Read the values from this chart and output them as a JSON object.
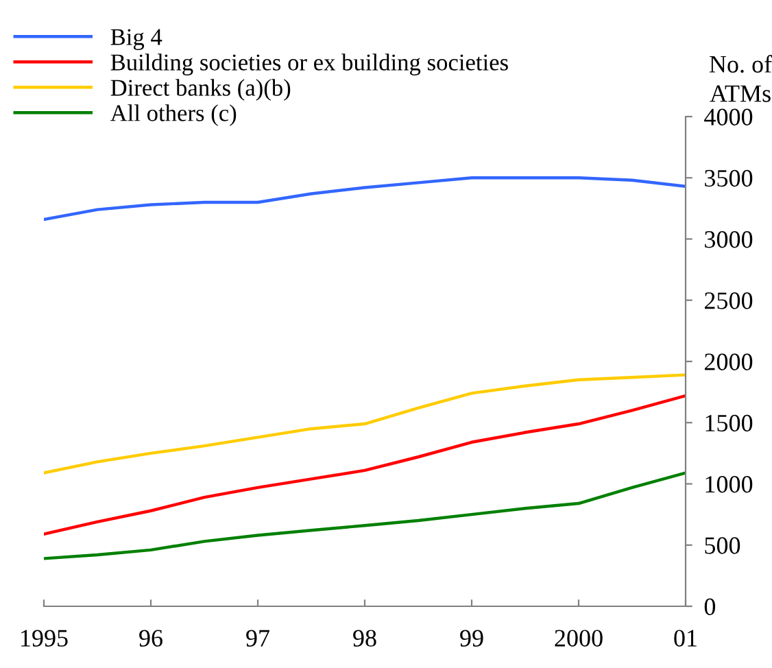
{
  "chart_data": {
    "type": "line",
    "ylabel": "No. of\nATMs",
    "x": [
      1995,
      1995.5,
      1996,
      1996.5,
      1997,
      1997.5,
      1998,
      1998.5,
      1999,
      1999.5,
      2000,
      2000.5,
      2001
    ],
    "series": [
      {
        "name": "Big 4",
        "color": "#3366ff",
        "values": [
          3160,
          3240,
          3280,
          3300,
          3300,
          3370,
          3420,
          3460,
          3500,
          3500,
          3500,
          3480,
          3430
        ]
      },
      {
        "name": "Building societies or ex building societies",
        "color": "#ff0000",
        "values": [
          590,
          690,
          780,
          890,
          970,
          1040,
          1110,
          1220,
          1340,
          1420,
          1490,
          1600,
          1720
        ]
      },
      {
        "name": "Direct banks (a)(b)",
        "color": "#ffcc00",
        "values": [
          1090,
          1180,
          1250,
          1310,
          1380,
          1450,
          1490,
          1620,
          1740,
          1800,
          1850,
          1870,
          1890
        ]
      },
      {
        "name": "All others (c)",
        "color": "#008000",
        "values": [
          390,
          420,
          460,
          530,
          580,
          620,
          660,
          700,
          750,
          800,
          840,
          970,
          1090
        ]
      }
    ],
    "xlim": [
      1995,
      2001
    ],
    "xticks": [
      {
        "value": 1995,
        "label": "1995"
      },
      {
        "value": 1996,
        "label": "96"
      },
      {
        "value": 1997,
        "label": "97"
      },
      {
        "value": 1998,
        "label": "98"
      },
      {
        "value": 1999,
        "label": "99"
      },
      {
        "value": 2000,
        "label": "2000"
      },
      {
        "value": 2001,
        "label": "01"
      }
    ],
    "ylim": [
      0,
      4000
    ],
    "yticks": [
      0,
      500,
      1000,
      1500,
      2000,
      2500,
      3000,
      3500,
      4000
    ],
    "grid": false,
    "legend": "top left",
    "marker": "none",
    "line_style": "solid"
  }
}
